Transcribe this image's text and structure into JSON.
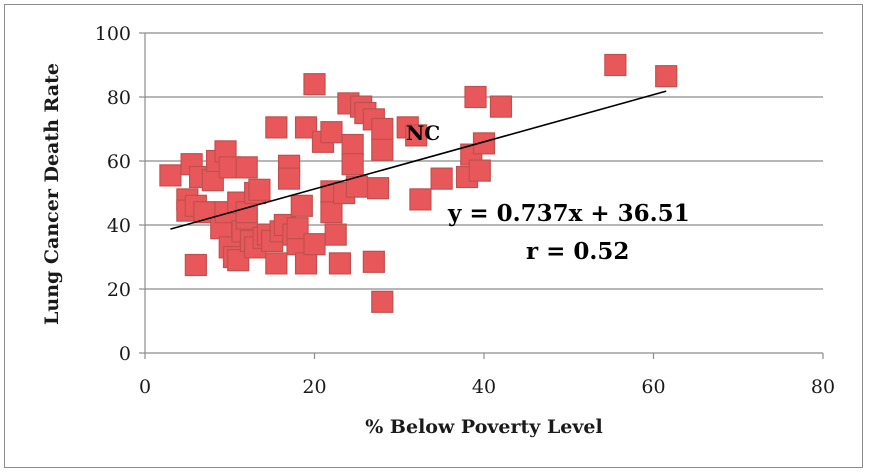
{
  "chart_data": {
    "type": "scatter",
    "xlabel": "% Below Poverty Level",
    "ylabel": "Lung Cancer Death Rate",
    "xlim": [
      0,
      80
    ],
    "ylim": [
      0,
      100
    ],
    "xticks": [
      0,
      20,
      40,
      60,
      80
    ],
    "yticks": [
      0,
      20,
      40,
      60,
      80,
      100
    ],
    "grid": "horizontal",
    "marker_color": "#e8585b",
    "marker_edge_color": "#c0504d",
    "trendline": {
      "equation": "y = 0.737x + 36.51",
      "r_label": "r = 0.52",
      "slope": 0.737,
      "intercept": 36.51,
      "x_range": [
        3,
        61.5
      ]
    },
    "annotation": {
      "text": "NC",
      "x": 33,
      "y": 70
    },
    "series": [
      {
        "points": [
          [
            3,
            55.5
          ],
          [
            5,
            48
          ],
          [
            5,
            44.5
          ],
          [
            5.5,
            59
          ],
          [
            6,
            46
          ],
          [
            6.5,
            55
          ],
          [
            6,
            27.5
          ],
          [
            7,
            44
          ],
          [
            8,
            54
          ],
          [
            8.5,
            60
          ],
          [
            9,
            39
          ],
          [
            9.5,
            63
          ],
          [
            9.5,
            44
          ],
          [
            10,
            58
          ],
          [
            10,
            33
          ],
          [
            10.5,
            30
          ],
          [
            11,
            29
          ],
          [
            11,
            47
          ],
          [
            11.5,
            38
          ],
          [
            12,
            42
          ],
          [
            12,
            44
          ],
          [
            12,
            58
          ],
          [
            12.5,
            35
          ],
          [
            13,
            33
          ],
          [
            13,
            50
          ],
          [
            13.5,
            51
          ],
          [
            14,
            36
          ],
          [
            14.5,
            37
          ],
          [
            15,
            35
          ],
          [
            15.5,
            70.5
          ],
          [
            15.5,
            28
          ],
          [
            16,
            38
          ],
          [
            16.5,
            40
          ],
          [
            17,
            58.5
          ],
          [
            17,
            54.5
          ],
          [
            17.5,
            37
          ],
          [
            18,
            34
          ],
          [
            18,
            39
          ],
          [
            18.5,
            46
          ],
          [
            19,
            28
          ],
          [
            19,
            70.5
          ],
          [
            20,
            84
          ],
          [
            20,
            34
          ],
          [
            21,
            66
          ],
          [
            22,
            69
          ],
          [
            22,
            44
          ],
          [
            22,
            50.5
          ],
          [
            22.5,
            37
          ],
          [
            23,
            28
          ],
          [
            23.5,
            50
          ],
          [
            24,
            78
          ],
          [
            24.5,
            65
          ],
          [
            24.5,
            59
          ],
          [
            25,
            52
          ],
          [
            25.5,
            77
          ],
          [
            26,
            75
          ],
          [
            27,
            73
          ],
          [
            27,
            28.5
          ],
          [
            27.5,
            51.5
          ],
          [
            28,
            16
          ],
          [
            28,
            70
          ],
          [
            28,
            63.5
          ],
          [
            31,
            70.5
          ],
          [
            32,
            68
          ],
          [
            32.5,
            48
          ],
          [
            35,
            54.5
          ],
          [
            38,
            55
          ],
          [
            38.5,
            62
          ],
          [
            39,
            80
          ],
          [
            39.5,
            57
          ],
          [
            40,
            65.5
          ],
          [
            42,
            77
          ],
          [
            55.5,
            90
          ],
          [
            61.5,
            86.5
          ]
        ]
      }
    ]
  }
}
